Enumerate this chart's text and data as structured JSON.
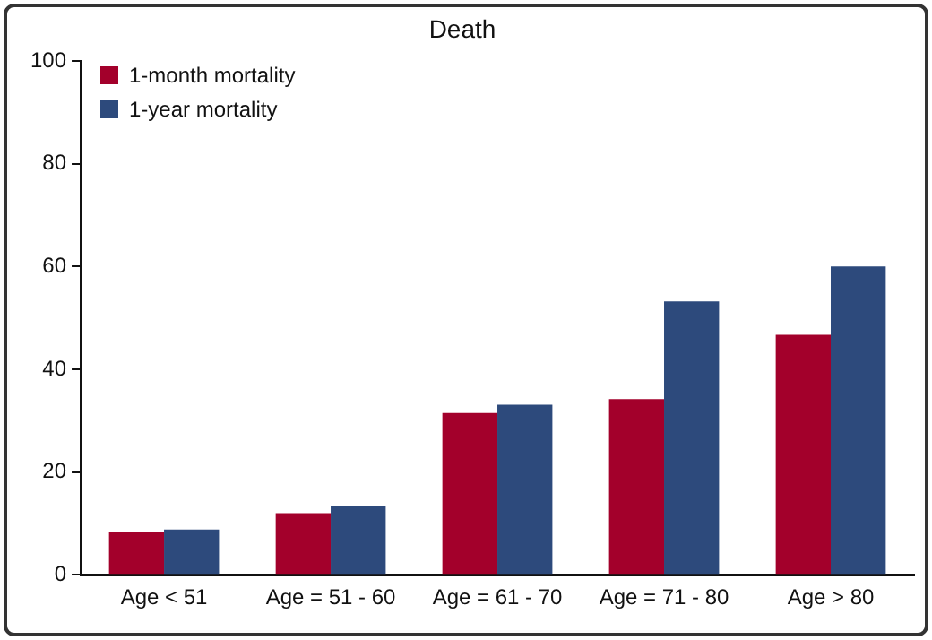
{
  "chart_data": {
    "type": "bar",
    "title": "Death",
    "categories": [
      "Age < 51",
      "Age = 51 - 60",
      "Age = 61 - 70",
      "Age = 71 - 80",
      "Age > 80"
    ],
    "series": [
      {
        "name": "1-month mortality",
        "color": "#a3002b",
        "values": [
          8.4,
          12.0,
          31.5,
          34.2,
          46.7
        ]
      },
      {
        "name": "1-year mortality",
        "color": "#2d4a7c",
        "values": [
          8.8,
          13.3,
          33.1,
          53.2,
          60
        ]
      }
    ],
    "ylim": [
      0,
      100
    ],
    "yticks": [
      0,
      20,
      40,
      60,
      80,
      100
    ],
    "grid": false,
    "legend": "top left"
  }
}
